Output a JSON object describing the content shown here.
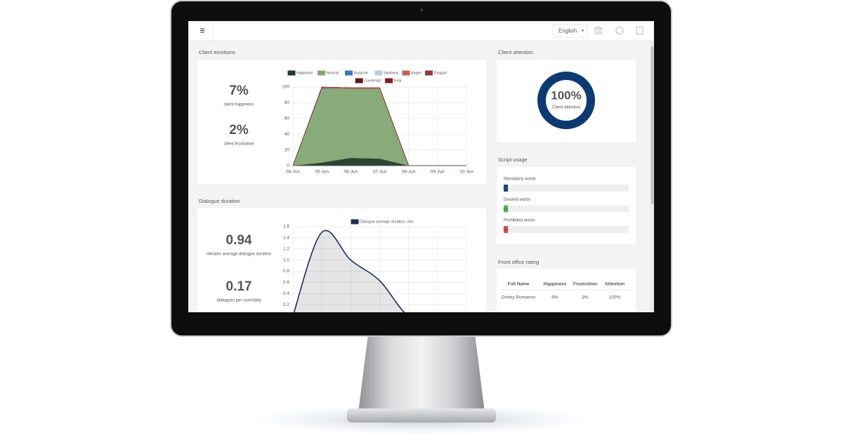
{
  "header": {
    "language": "English"
  },
  "client_emotions": {
    "title": "Client emotions",
    "stats": [
      {
        "value": "7%",
        "label": "client happiness"
      },
      {
        "value": "2%",
        "label": "client frustration"
      }
    ],
    "chart": {
      "type": "area",
      "stacked": true,
      "categories": [
        "04-Jun",
        "05-Jun",
        "06-Jun",
        "07-Jun",
        "08-Jun",
        "09-Jun",
        "10-Jun"
      ],
      "ylim": [
        0,
        100
      ],
      "yticks": [
        0,
        20,
        40,
        60,
        80,
        100
      ],
      "grid": true,
      "series": [
        {
          "name": "Happines",
          "color": "#1e3b29",
          "values": [
            0,
            4,
            10,
            9,
            0,
            0,
            0
          ]
        },
        {
          "name": "Neutral",
          "color": "#82a872",
          "values": [
            0,
            94,
            88,
            89,
            0,
            0,
            0
          ]
        },
        {
          "name": "Surprise",
          "color": "#3b78c3",
          "values": [
            0,
            1,
            0,
            0,
            0,
            0,
            0
          ]
        },
        {
          "name": "Sadness",
          "color": "#b9cde2",
          "values": [
            0,
            0,
            0,
            0,
            0,
            0,
            0
          ]
        },
        {
          "name": "Anger",
          "color": "#c3615d",
          "values": [
            0,
            1,
            1,
            1,
            0,
            0,
            0
          ]
        },
        {
          "name": "Disgust",
          "color": "#963a40",
          "values": [
            0,
            0,
            0,
            0,
            0,
            0,
            0
          ]
        },
        {
          "name": "Contempt",
          "color": "#6b1717",
          "values": [
            0,
            0,
            0,
            0,
            0,
            0,
            0
          ]
        },
        {
          "name": "Fear",
          "color": "#8e1b1b",
          "values": [
            0,
            0,
            0,
            0,
            0,
            0,
            0
          ]
        }
      ]
    }
  },
  "client_attention": {
    "title": "Client attention",
    "chart": {
      "type": "donut",
      "value": 100,
      "value_label": "100%",
      "caption": "Client attention",
      "color": "#0e3a74"
    }
  },
  "script_usage": {
    "title": "Script usage",
    "items": [
      {
        "label": "Mandatory words",
        "value": 0,
        "value_label": "0%",
        "color": "#1f3f7a"
      },
      {
        "label": "Desired words",
        "value": 0,
        "value_label": "0%",
        "color": "#5cb85c"
      },
      {
        "label": "Prohibited words",
        "value": 0,
        "value_label": "0%",
        "color": "#d9534f"
      }
    ]
  },
  "dialogue_duration": {
    "title": "Dialogue duration",
    "stats": [
      {
        "value": "0.94",
        "label": "minutes average dialogue duration"
      },
      {
        "value": "0.17",
        "label": "dialogues per user/daily"
      }
    ],
    "chart": {
      "type": "line",
      "categories": [
        null,
        null,
        null,
        null,
        null,
        null,
        null
      ],
      "ylim": [
        0,
        1.6
      ],
      "yticks": [
        0.2,
        0.4,
        0.6,
        0.8,
        {
          "value": 1,
          "label": "1.0"
        },
        1.2,
        1.4,
        1.6
      ],
      "grid": true,
      "series": [
        {
          "name": "Dialogue average duration, min",
          "color": "#1b2f5e",
          "values": [
            0,
            1.5,
            1.0,
            0.63,
            0,
            0,
            0
          ]
        }
      ]
    }
  },
  "front_office_rating": {
    "title": "Front office rating",
    "table": {
      "columns": [
        "Full Name",
        "Happiness",
        "Frustration",
        "Attention"
      ],
      "rows": [
        [
          "Dmitry Romanov",
          "9%",
          "3%",
          "100%"
        ]
      ]
    }
  }
}
